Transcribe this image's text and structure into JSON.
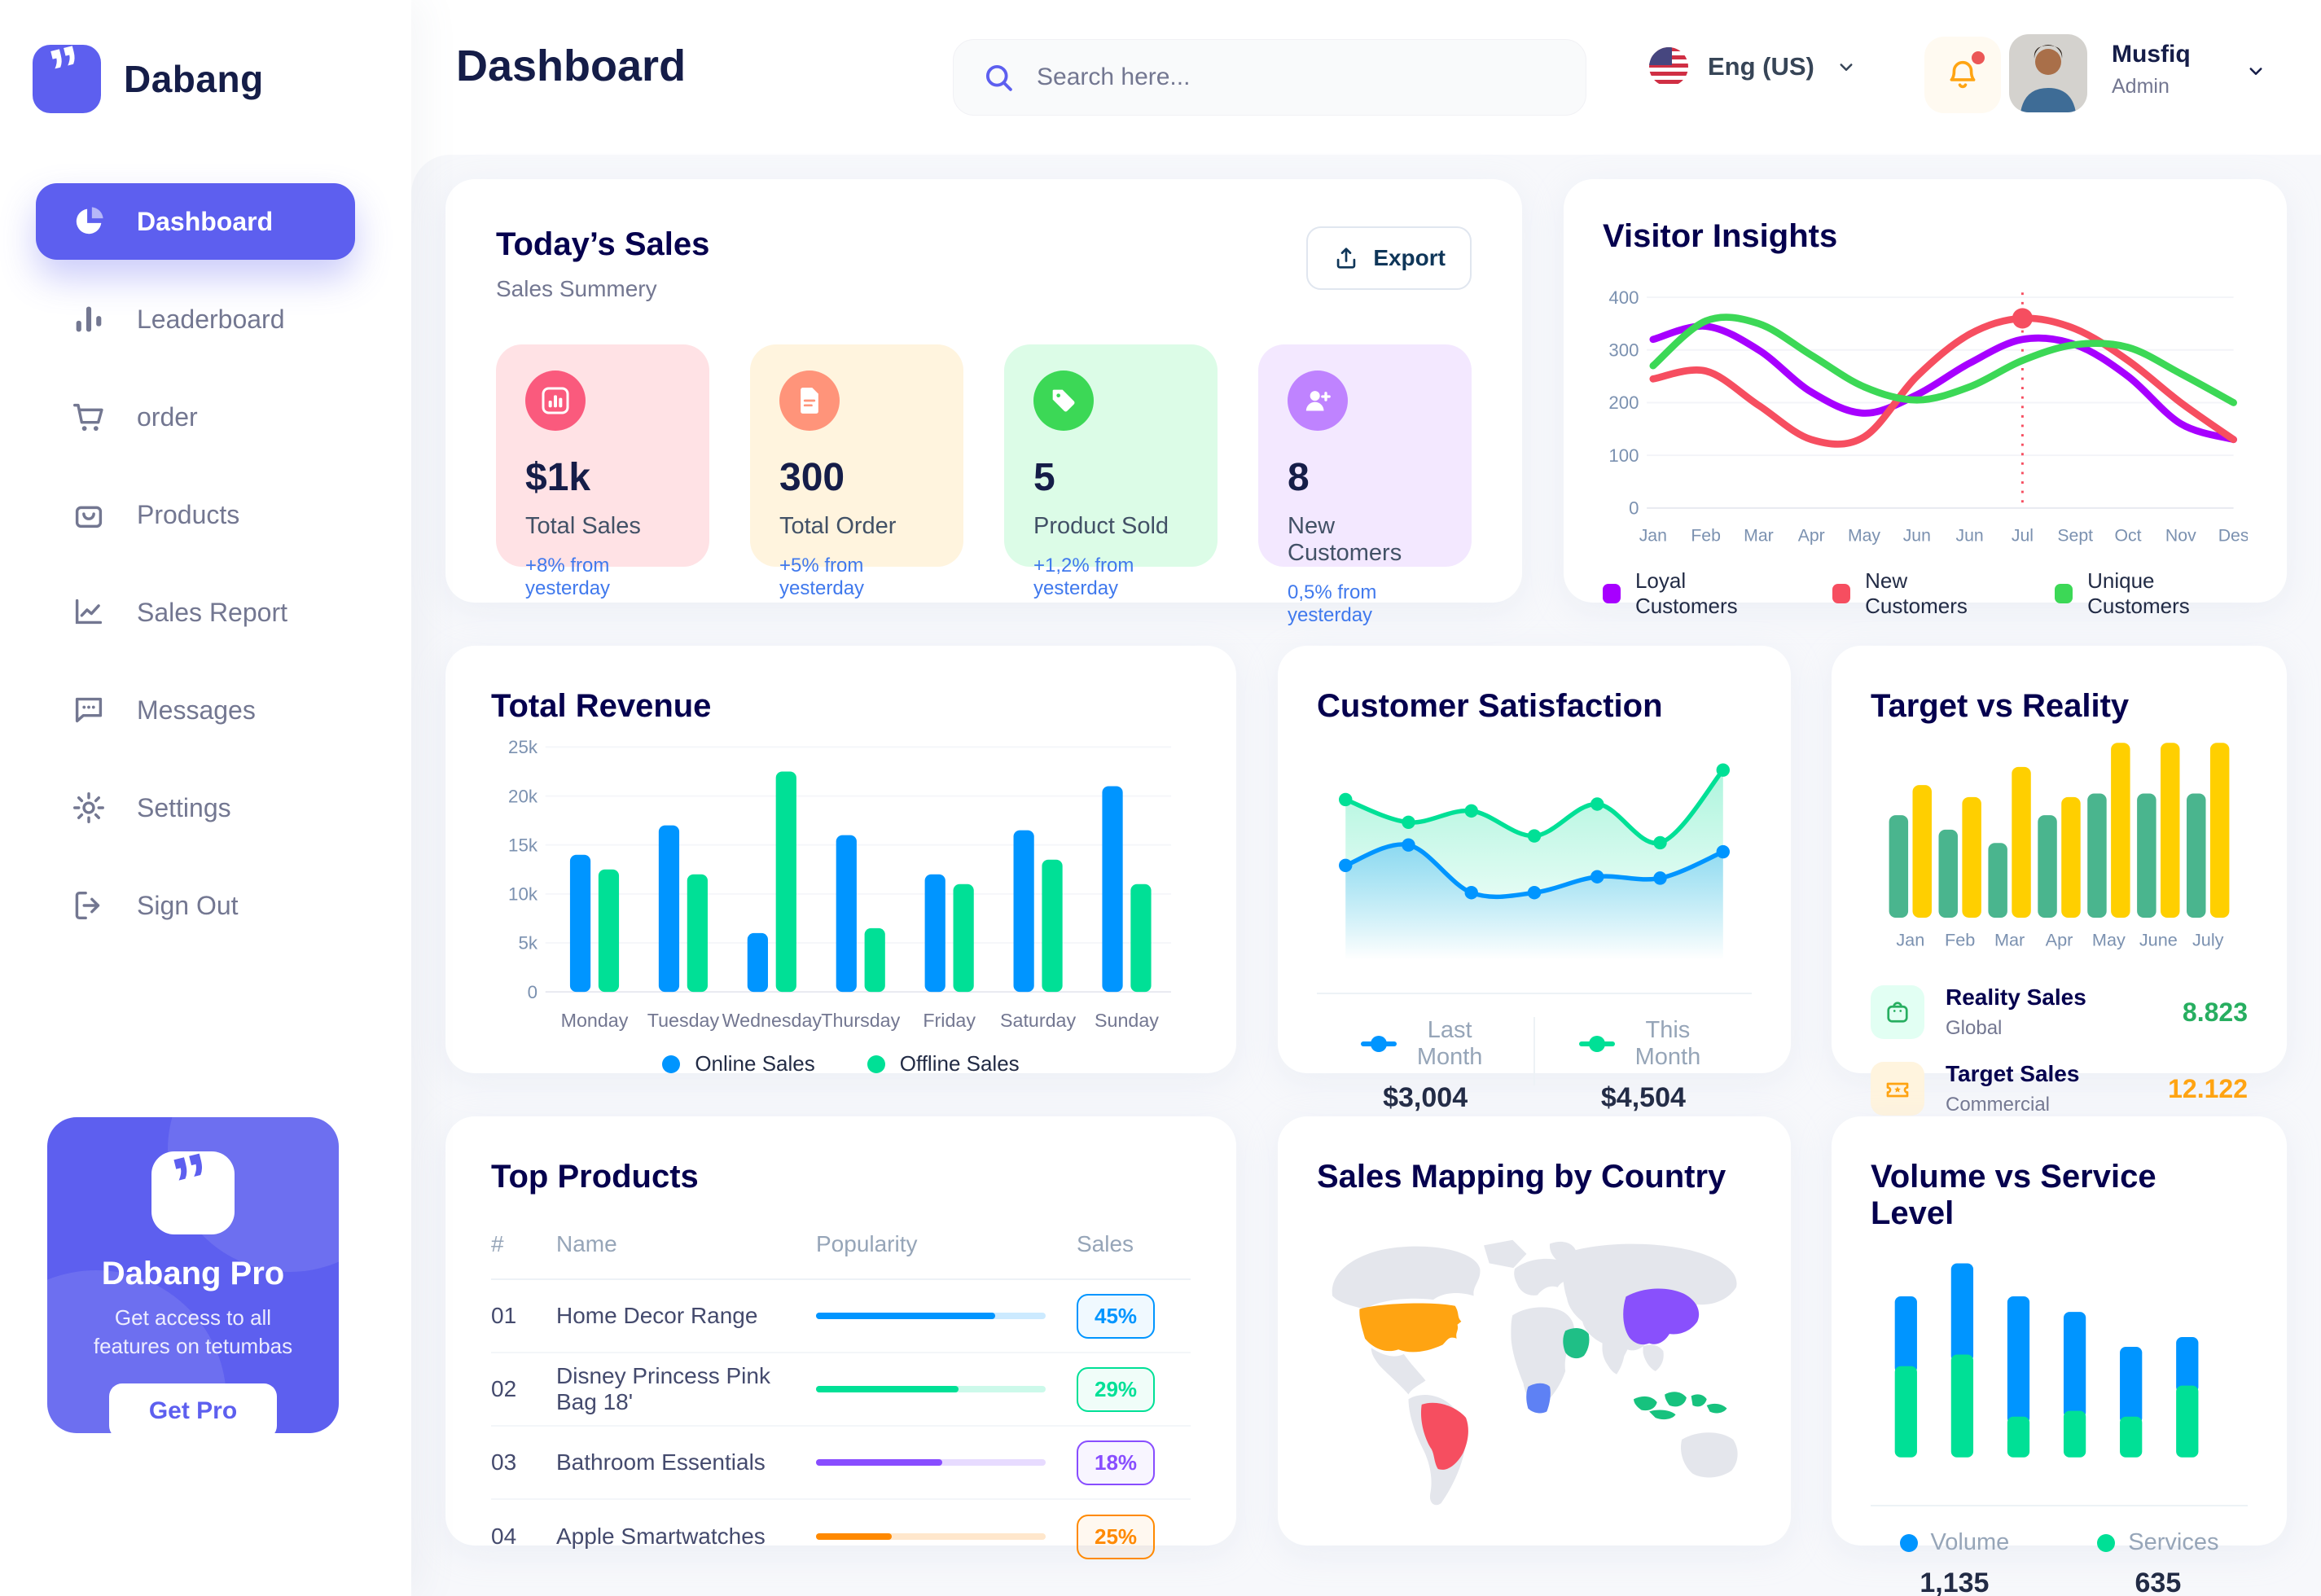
{
  "app": {
    "brand": "Dabang"
  },
  "sidebar": {
    "items": [
      {
        "label": "Dashboard",
        "icon": "dashboard-pie-icon",
        "active": true
      },
      {
        "label": "Leaderboard",
        "icon": "leaderboard-bars-icon",
        "active": false
      },
      {
        "label": "order",
        "icon": "cart-icon",
        "active": false
      },
      {
        "label": "Products",
        "icon": "products-bag-icon",
        "active": false
      },
      {
        "label": "Sales Report",
        "icon": "sales-report-trend-icon",
        "active": false
      },
      {
        "label": "Messages",
        "icon": "messages-chat-icon",
        "active": false
      },
      {
        "label": "Settings",
        "icon": "settings-gear-icon",
        "active": false
      },
      {
        "label": "Sign Out",
        "icon": "sign-out-icon",
        "active": false
      }
    ],
    "pro": {
      "title": "Dabang Pro",
      "desc": "Get access to all features on tetumbas",
      "button": "Get Pro"
    }
  },
  "header": {
    "title": "Dashboard",
    "search_placeholder": "Search here...",
    "language": "Eng (US)",
    "user": {
      "name": "Musfiq",
      "role": "Admin"
    }
  },
  "today_sales": {
    "title": "Today’s Sales",
    "subtitle": "Sales Summery",
    "export_label": "Export",
    "cards": [
      {
        "value": "$1k",
        "label": "Total Sales",
        "delta": "+8% from yesterday",
        "bg": "#FFE2E5",
        "icon_bg": "#FA5A7D",
        "icon": "stat-chart-icon"
      },
      {
        "value": "300",
        "label": "Total Order",
        "delta": "+5% from yesterday",
        "bg": "#FFF4DE",
        "icon_bg": "#FF947A",
        "icon": "stat-file-icon"
      },
      {
        "value": "5",
        "label": "Product Sold",
        "delta": "+1,2% from yesterday",
        "bg": "#DCFCE7",
        "icon_bg": "#3CD856",
        "icon": "stat-tag-icon"
      },
      {
        "value": "8",
        "label": "New Customers",
        "delta": "0,5% from yesterday",
        "bg": "#F3E8FF",
        "icon_bg": "#BF83FF",
        "icon": "stat-user-plus-icon"
      }
    ]
  },
  "chart_data": {
    "visitor_insights": {
      "type": "line",
      "title": "Visitor Insights",
      "x": [
        "Jan",
        "Feb",
        "Mar",
        "Apr",
        "May",
        "Jun",
        "Jun",
        "Jul",
        "Sept",
        "Oct",
        "Nov",
        "Des"
      ],
      "ylim": [
        0,
        400
      ],
      "yticks": [
        0,
        100,
        200,
        300,
        400
      ],
      "marker": {
        "x": "Jul",
        "index": 7,
        "value": 360,
        "color": "#F64E60"
      },
      "series": [
        {
          "name": "Loyal Customers",
          "color": "#A700FF",
          "values": [
            320,
            345,
            300,
            220,
            180,
            215,
            275,
            320,
            310,
            250,
            160,
            130
          ]
        },
        {
          "name": "New Customers",
          "color": "#F64E60",
          "values": [
            245,
            260,
            195,
            130,
            135,
            250,
            330,
            360,
            340,
            280,
            200,
            130
          ]
        },
        {
          "name": "Unique Customers",
          "color": "#3CD856",
          "values": [
            270,
            355,
            350,
            290,
            230,
            205,
            230,
            280,
            310,
            305,
            255,
            200
          ]
        }
      ]
    },
    "total_revenue": {
      "type": "bar",
      "title": "Total Revenue",
      "categories": [
        "Monday",
        "Tuesday",
        "Wednesday",
        "Thursday",
        "Friday",
        "Saturday",
        "Sunday"
      ],
      "ylim": [
        0,
        25000
      ],
      "yticks": [
        0,
        5000,
        10000,
        15000,
        20000,
        25000
      ],
      "ytick_labels": [
        "0",
        "5k",
        "10k",
        "15k",
        "20k",
        "25k"
      ],
      "series": [
        {
          "name": "Online Sales",
          "color": "#0095FF",
          "values": [
            14000,
            17000,
            6000,
            16000,
            12000,
            16500,
            21000
          ]
        },
        {
          "name": "Offline Sales",
          "color": "#00E096",
          "values": [
            12500,
            12000,
            22500,
            6500,
            11000,
            13500,
            11000
          ]
        }
      ]
    },
    "customer_satisfaction": {
      "type": "area",
      "title": "Customer Satisfaction",
      "ylim": [
        0,
        5
      ],
      "series": [
        {
          "name": "Last Month",
          "value_label": "$3,004",
          "color": "#0095FF",
          "values": [
            2.0,
            2.45,
            1.4,
            1.4,
            1.75,
            1.72,
            2.3
          ]
        },
        {
          "name": "This Month",
          "value_label": "$4,504",
          "color": "#00E096",
          "values": [
            3.45,
            2.95,
            3.2,
            2.65,
            3.35,
            2.5,
            4.1
          ]
        }
      ]
    },
    "target_vs_reality": {
      "type": "bar",
      "title": "Target vs Reality",
      "categories": [
        "Jan",
        "Feb",
        "Mar",
        "Apr",
        "May",
        "June",
        "July"
      ],
      "ylim": [
        0,
        15
      ],
      "series": [
        {
          "name": "Reality Sales",
          "color": "#4AB58E",
          "values": [
            8.5,
            7.3,
            6.2,
            8.5,
            10.3,
            10.3,
            10.3
          ]
        },
        {
          "name": "Target Sales",
          "color": "#FFCF00",
          "values": [
            11,
            10,
            12.5,
            10,
            14.5,
            14.5,
            14.5
          ]
        }
      ],
      "legend": [
        {
          "title": "Reality Sales",
          "subtitle": "Global",
          "value": "8.823",
          "value_color": "#27AE60",
          "icon": "bag-icon",
          "icon_bg": "#E2FFF3",
          "icon_color": "#27AE60"
        },
        {
          "title": "Target Sales",
          "subtitle": "Commercial",
          "value": "12.122",
          "value_color": "#FFA412",
          "icon": "ticket-icon",
          "icon_bg": "#FFF4DE",
          "icon_color": "#FFA412"
        }
      ]
    },
    "volume_vs_service": {
      "type": "stacked_bar",
      "title": "Volume vs Service Level",
      "ylim": [
        0,
        100
      ],
      "series": [
        {
          "name": "Volume",
          "color": "#0095FF",
          "total_label": "1,135",
          "values": [
            36,
            47,
            62,
            51,
            36,
            25
          ]
        },
        {
          "name": "Services",
          "color": "#00E096",
          "total_label": "635",
          "values": [
            47,
            53,
            21,
            24,
            21,
            37
          ]
        }
      ]
    }
  },
  "top_products": {
    "title": "Top Products",
    "headers": [
      "#",
      "Name",
      "Popularity",
      "Sales"
    ],
    "rows": [
      {
        "num": "01",
        "name": "Home Decor Range",
        "popularity": 78,
        "badge": "45%",
        "color": "#0095FF"
      },
      {
        "num": "02",
        "name": "Disney Princess Pink Bag 18'",
        "popularity": 62,
        "badge": "29%",
        "color": "#00E096"
      },
      {
        "num": "03",
        "name": "Bathroom Essentials",
        "popularity": 55,
        "badge": "18%",
        "color": "#884DFF"
      },
      {
        "num": "04",
        "name": "Apple Smartwatches",
        "popularity": 33,
        "badge": "25%",
        "color": "#FF8900"
      }
    ]
  },
  "map": {
    "title": "Sales Mapping by Country",
    "countries": [
      {
        "name": "United States",
        "color": "#FFA412"
      },
      {
        "name": "Brazil",
        "color": "#F64E60"
      },
      {
        "name": "Saudi Arabia",
        "color": "#1FBF86"
      },
      {
        "name": "DR Congo",
        "color": "#5E81F4"
      },
      {
        "name": "China",
        "color": "#8950FC"
      },
      {
        "name": "Indonesia",
        "color": "#17C27E"
      }
    ]
  }
}
